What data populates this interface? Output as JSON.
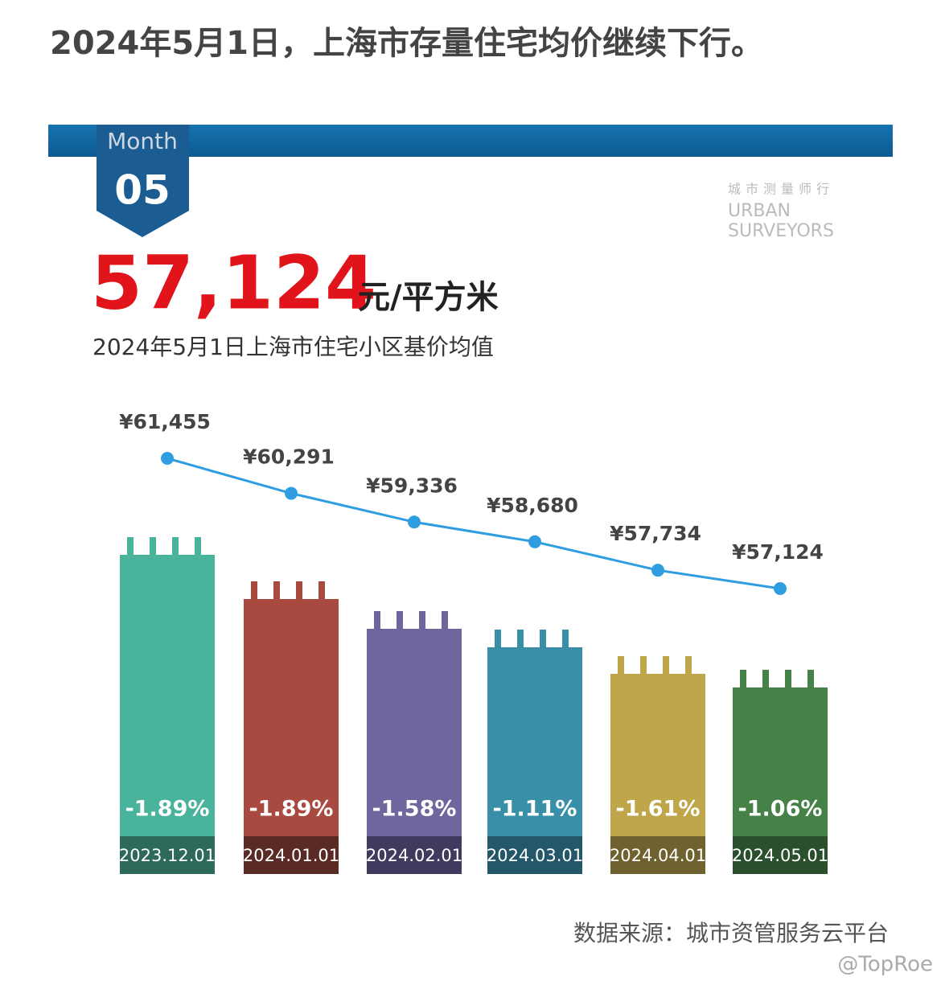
{
  "chart_data": {
    "type": "line",
    "title": "2024年5月1日，上海市存量住宅均价继续下行。",
    "month_label": "Month",
    "month": "05",
    "headline": "57,124",
    "headline_unit": "元/平方米",
    "subtitle": "2024年5月1日上海市住宅小区基价均值",
    "logo": [
      "城市测量师行",
      "URBAN",
      "SURVEYORS"
    ],
    "categories": [
      "2023.12.01",
      "2024.01.01",
      "2024.02.01",
      "2024.03.01",
      "2024.04.01",
      "2024.05.01"
    ],
    "values": [
      61455,
      60291,
      59336,
      58680,
      57734,
      57124
    ],
    "value_labels": [
      "¥61,455",
      "¥60,291",
      "¥59,336",
      "¥58,680",
      "¥57,734",
      "¥57,124"
    ],
    "changes": [
      "-1.89%",
      "-1.89%",
      "-1.58%",
      "-1.11%",
      "-1.61%",
      "-1.06%"
    ],
    "color": "#2e9ee0",
    "bar_colors": [
      "#4ab39b",
      "#a84a40",
      "#6e679e",
      "#3a8fa8",
      "#bfa64a",
      "#468248"
    ],
    "source": "数据来源：城市资管服务云平台",
    "watermark": "@TopRoe"
  }
}
